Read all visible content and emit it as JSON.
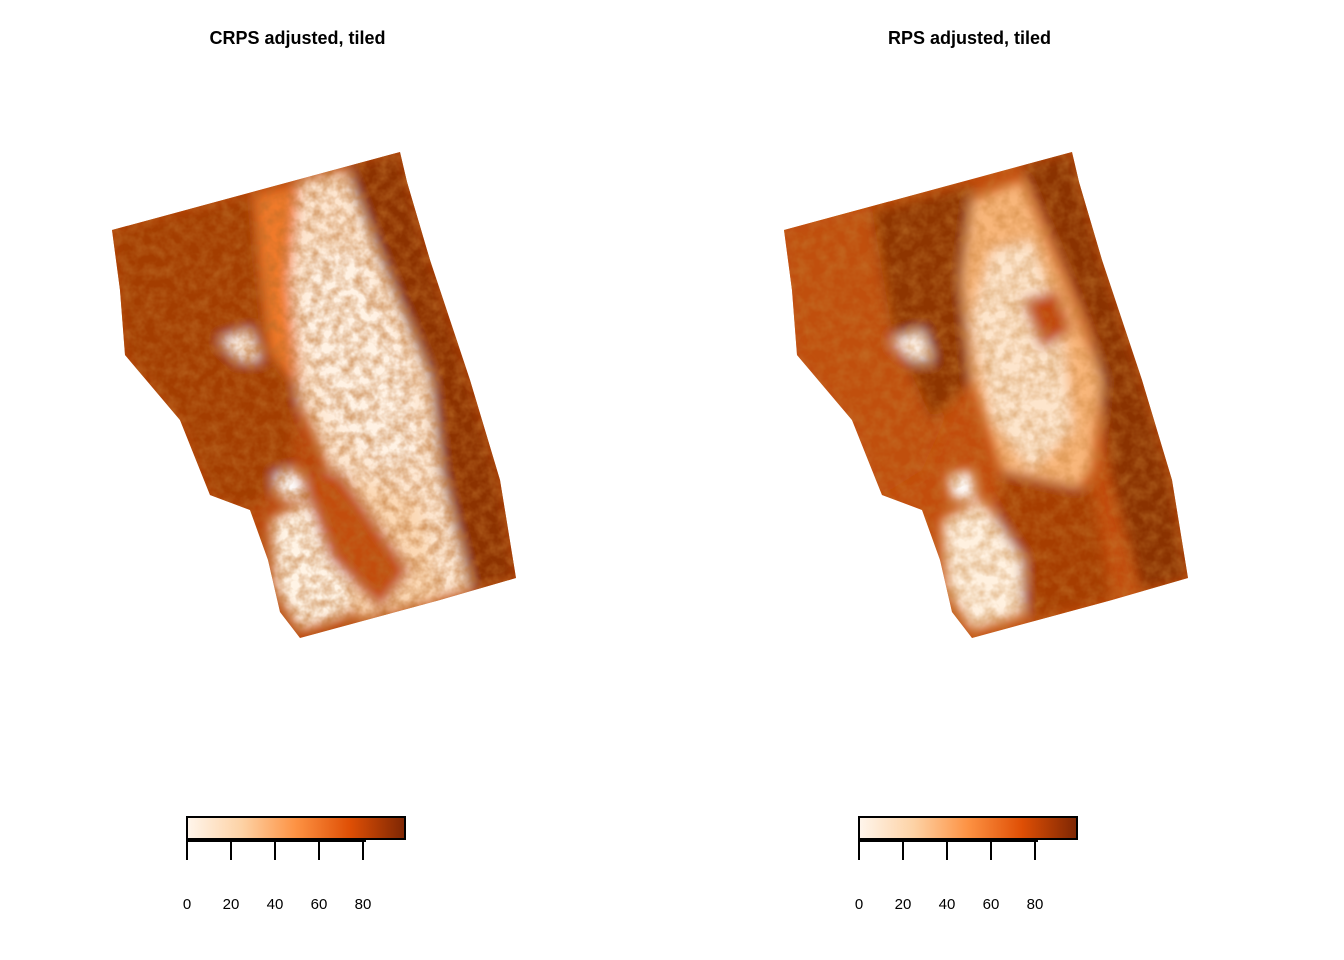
{
  "chart_data": [
    {
      "type": "heatmap",
      "title": "CRPS adjusted, tiled",
      "legend": {
        "min": 0,
        "max": 100,
        "ticks": [
          0,
          20,
          40,
          60,
          80
        ],
        "colors": [
          "#fff5eb",
          "#fdd2a5",
          "#fd9243",
          "#df4f05",
          "#7f2704"
        ]
      },
      "grid": false,
      "description_of_values": "spatial raster, values 0-100"
    },
    {
      "type": "heatmap",
      "title": "RPS adjusted, tiled",
      "legend": {
        "min": 0,
        "max": 100,
        "ticks": [
          0,
          20,
          40,
          60,
          80
        ],
        "colors": [
          "#fff5eb",
          "#fdd2a5",
          "#fd9243",
          "#df4f05",
          "#7f2704"
        ]
      },
      "grid": false,
      "description_of_values": "spatial raster, values 0-100"
    }
  ]
}
